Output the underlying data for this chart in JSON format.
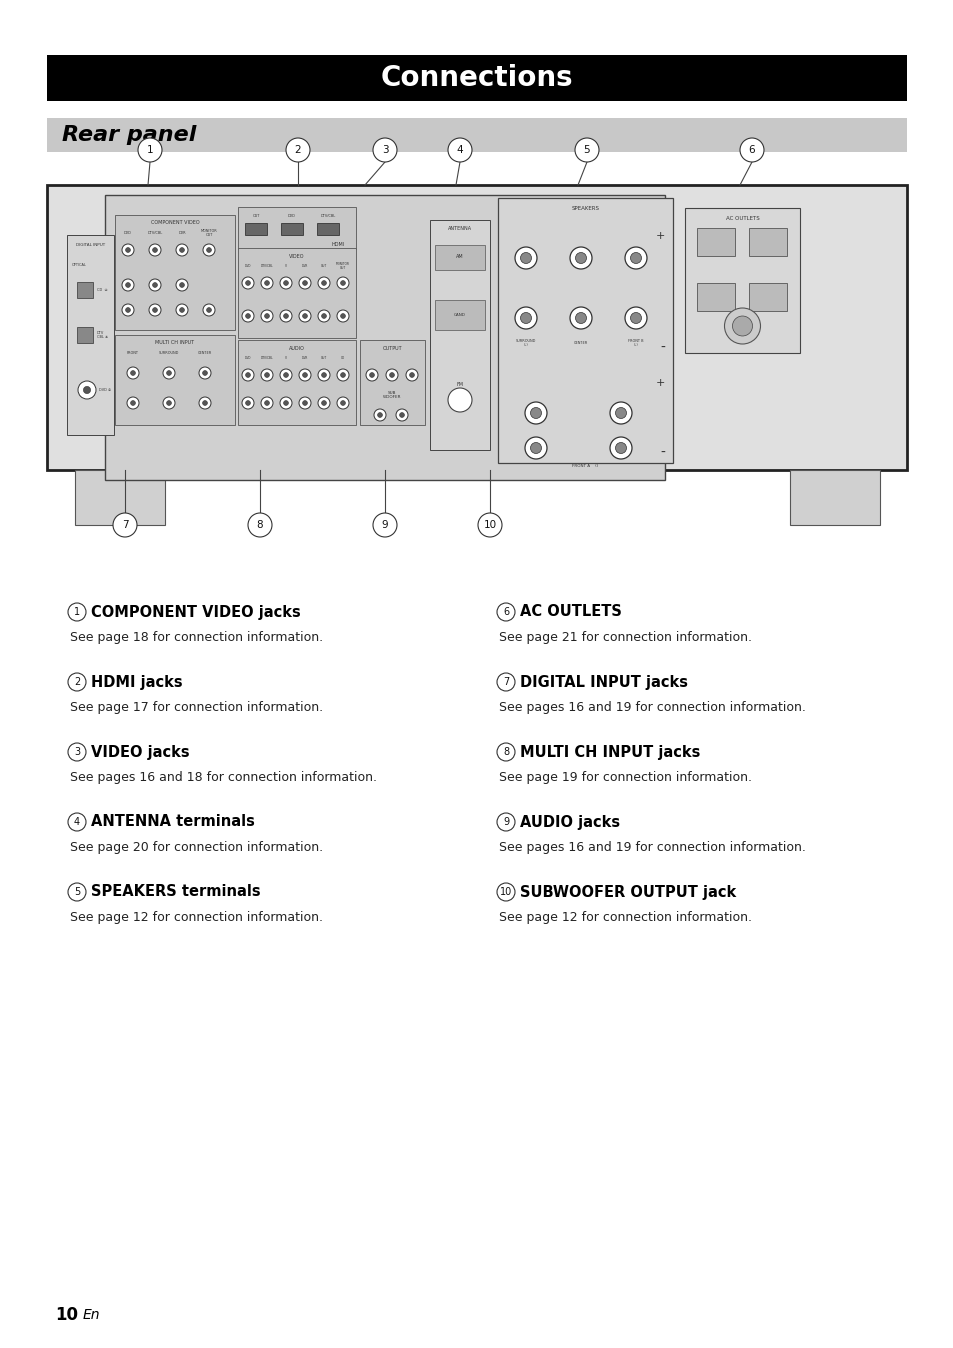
{
  "title": "Connections",
  "subtitle": "Rear panel",
  "title_bg": "#000000",
  "title_fg": "#ffffff",
  "subtitle_bg": "#c8c8c8",
  "subtitle_fg": "#000000",
  "page_bg": "#ffffff",
  "items_left": [
    {
      "num": "1",
      "head": "COMPONENT VIDEO jacks",
      "body": "See page 18 for connection information."
    },
    {
      "num": "2",
      "head": "HDMI jacks",
      "body": "See page 17 for connection information."
    },
    {
      "num": "3",
      "head": "VIDEO jacks",
      "body": "See pages 16 and 18 for connection information."
    },
    {
      "num": "4",
      "head": "ANTENNA terminals",
      "body": "See page 20 for connection information."
    },
    {
      "num": "5",
      "head": "SPEAKERS terminals",
      "body": "See page 12 for connection information."
    }
  ],
  "items_right": [
    {
      "num": "6",
      "head": "AC OUTLETS",
      "body": "See page 21 for connection information."
    },
    {
      "num": "7",
      "head": "DIGITAL INPUT jacks",
      "body": "See pages 16 and 19 for connection information."
    },
    {
      "num": "8",
      "head": "MULTI CH INPUT jacks",
      "body": "See page 19 for connection information."
    },
    {
      "num": "9",
      "head": "AUDIO jacks",
      "body": "See pages 16 and 19 for connection information."
    },
    {
      "num": "10",
      "head": "SUBWOOFER OUTPUT jack",
      "body": "See page 12 for connection information."
    }
  ],
  "page_number": "10",
  "page_suffix": "En"
}
